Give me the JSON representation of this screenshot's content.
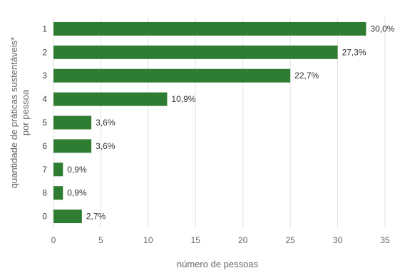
{
  "chart_data": {
    "type": "bar",
    "orientation": "horizontal",
    "categories": [
      "1",
      "2",
      "3",
      "4",
      "5",
      "6",
      "7",
      "8",
      "0"
    ],
    "values": [
      33,
      30,
      25,
      12,
      4,
      4,
      1,
      1,
      3
    ],
    "data_labels": [
      "30,0%",
      "27,3%",
      "22,7%",
      "10,9%",
      "3,6%",
      "3,6%",
      "0,9%",
      "0,9%",
      "2,7%"
    ],
    "xlabel": "número de pessoas",
    "ylabel_lines": [
      "quantidade de práticas sustentáveis*",
      "por pessoa"
    ],
    "xlim": [
      0,
      35
    ],
    "xticks": [
      0,
      5,
      10,
      15,
      20,
      25,
      30,
      35
    ],
    "grid": true,
    "bar_color": "#2e7d32",
    "grid_color": "#e2e2e2"
  }
}
